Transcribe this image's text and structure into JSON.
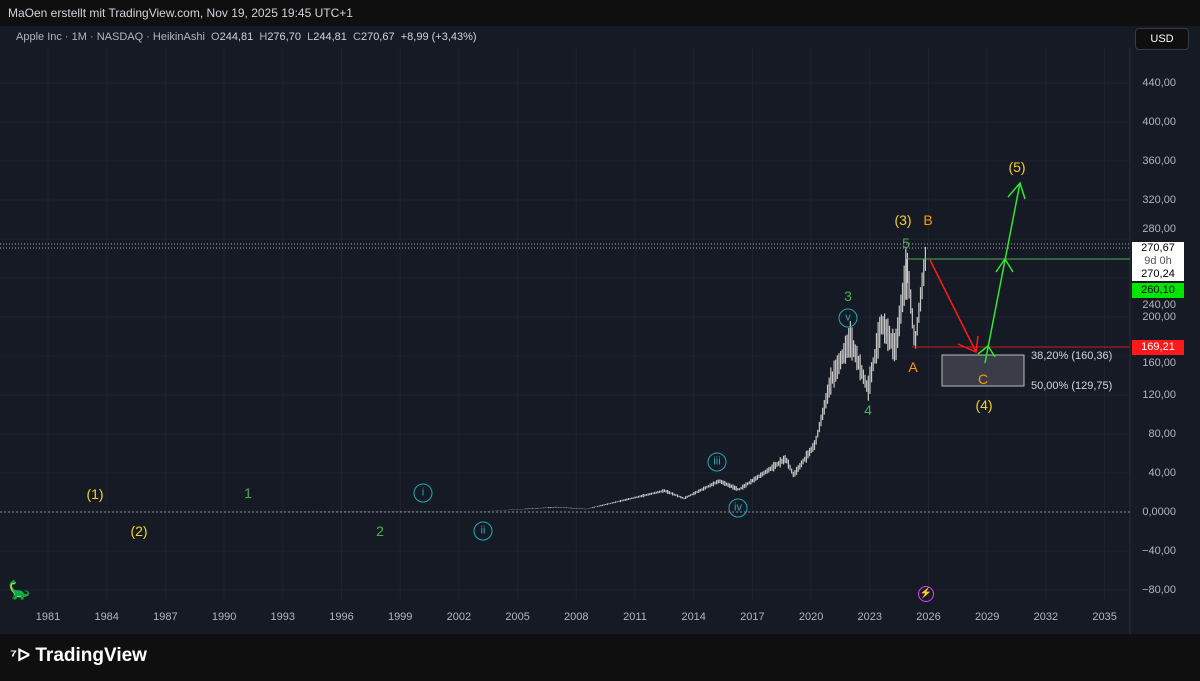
{
  "header": {
    "credit": "MaOen erstellt mit TradingView.com, Nov 19, 2025 19:45 UTC+1"
  },
  "legend": {
    "symbol": "Apple Inc · 1M · NASDAQ · HeikinAshi",
    "o_label": "O",
    "o": "244,81",
    "h_label": "H",
    "h": "276,70",
    "l_label": "L",
    "l": "244,81",
    "c_label": "C",
    "c": "270,67",
    "change": "+8,99 (+3,43%)"
  },
  "currency_button": "USD",
  "y_axis": [
    "440,00",
    "400,00",
    "360,00",
    "320,00",
    "280,00",
    "240,00",
    "200,00",
    "160,00",
    "120,00",
    "80,00",
    "40,00",
    "0,0000",
    "−40,00",
    "−80,00"
  ],
  "x_axis": [
    "1981",
    "1984",
    "1987",
    "1990",
    "1993",
    "1996",
    "1999",
    "2002",
    "2005",
    "2008",
    "2011",
    "2014",
    "2017",
    "2020",
    "2023",
    "2026",
    "2029",
    "2032",
    "2035"
  ],
  "price_labels": {
    "last": "270,67",
    "countdown": "9d 0h",
    "prev": "270,24",
    "green_level": "260,10",
    "red_level": "169,21"
  },
  "fib": {
    "f382": "38,20% (160,36)",
    "f50": "50,00% (129,75)"
  },
  "waves": {
    "w1": "(1)",
    "w2": "(2)",
    "w3": "(3)",
    "w4": "(4)",
    "w5": "(5)",
    "i1": "1",
    "i2": "2",
    "i3": "3",
    "i4": "4",
    "i5": "5",
    "r1": "i",
    "r2": "ii",
    "r3": "iii",
    "r4": "iv",
    "r5": "v",
    "a": "A",
    "b": "B",
    "c": "C"
  },
  "colors": {
    "yellow": "#f5d327",
    "green": "#4caf50",
    "cyan": "#22aab8",
    "orange": "#ff9800",
    "arrow_green": "#2ee82e",
    "arrow_red": "#ff1a1a",
    "candles": "#c8c8c8"
  },
  "brand": "TradingView",
  "price_path": [
    [
      1981,
      0.1
    ],
    [
      1990,
      0.3
    ],
    [
      2000,
      1
    ],
    [
      2003,
      0.3
    ],
    [
      2007,
      5
    ],
    [
      2008.5,
      3
    ],
    [
      2012.5,
      22
    ],
    [
      2013.5,
      14
    ],
    [
      2015.3,
      32
    ],
    [
      2016.3,
      23
    ],
    [
      2018.7,
      55
    ],
    [
      2019.1,
      38
    ],
    [
      2020.2,
      70
    ],
    [
      2021,
      135
    ],
    [
      2022,
      178
    ],
    [
      2022.9,
      126
    ],
    [
      2023.6,
      195
    ],
    [
      2024.3,
      168
    ],
    [
      2024.9,
      255
    ],
    [
      2025.3,
      172
    ],
    [
      2025.9,
      272
    ]
  ]
}
